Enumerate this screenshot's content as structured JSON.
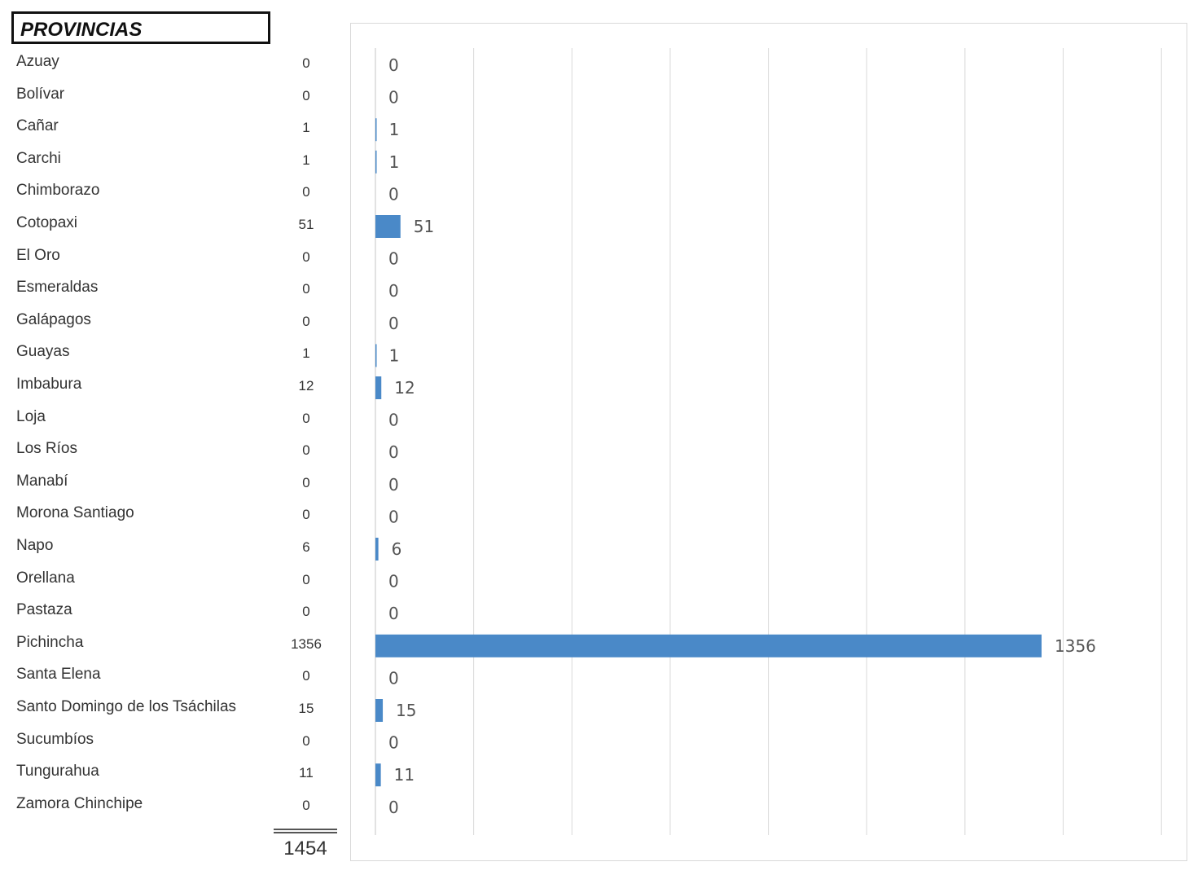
{
  "header": {
    "title": "PROVINCIAS"
  },
  "chart_data": {
    "type": "bar",
    "orientation": "horizontal",
    "categories": [
      "Azuay",
      "Bolívar",
      "Cañar",
      "Carchi",
      "Chimborazo",
      "Cotopaxi",
      "El Oro",
      "Esmeraldas",
      "Galápagos",
      "Guayas",
      "Imbabura",
      "Loja",
      "Los Ríos",
      "Manabí",
      "Morona Santiago",
      "Napo",
      "Orellana",
      "Pastaza",
      "Pichincha",
      "Santa Elena",
      "Santo Domingo de los Tsáchilas",
      "Sucumbíos",
      "Tungurahua",
      "Zamora Chinchipe"
    ],
    "values": [
      0,
      0,
      1,
      1,
      0,
      51,
      0,
      0,
      0,
      1,
      12,
      0,
      0,
      0,
      0,
      6,
      0,
      0,
      1356,
      0,
      15,
      0,
      11,
      0
    ],
    "value_labels": [
      "0",
      "0",
      "1",
      "1",
      "0",
      "51",
      "0",
      "0",
      "0",
      "1",
      "12",
      "0",
      "0",
      "0",
      "0",
      "6",
      "0",
      "0",
      "1356",
      "0",
      "15",
      "0",
      "11",
      "0"
    ],
    "total": "1454",
    "xlim": [
      0,
      1600
    ],
    "gridlines": true,
    "bar_color": "#4a89c8",
    "title": "",
    "xlabel": "",
    "ylabel": ""
  },
  "colors": {
    "bar": "#4a89c8",
    "grid": "#d9d9d9",
    "text": "#333333",
    "label": "#555555"
  }
}
